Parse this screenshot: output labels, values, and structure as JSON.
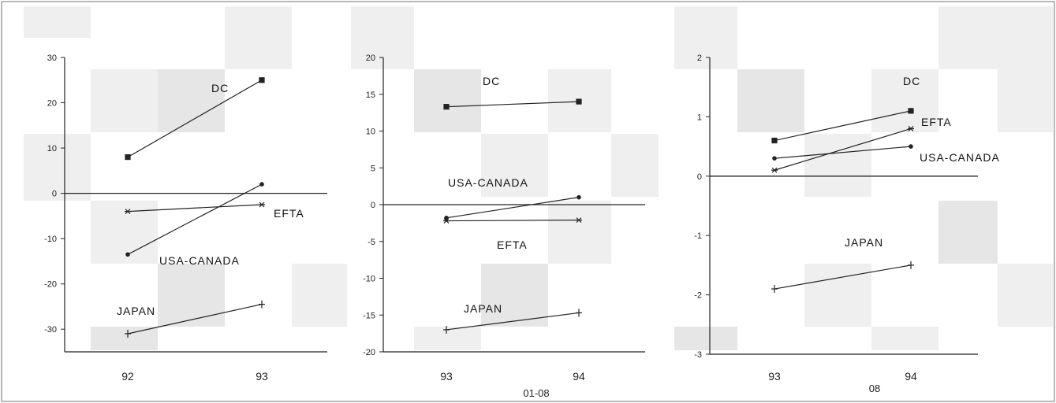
{
  "chart_data": [
    {
      "type": "line",
      "x": [
        "92",
        "93"
      ],
      "subtitle": "",
      "ylim": [
        -35,
        30
      ],
      "yticks": [
        30,
        20,
        10,
        0,
        -10,
        -20,
        -30
      ],
      "series": [
        {
          "name": "DC",
          "values": [
            8,
            25
          ],
          "marker": "square"
        },
        {
          "name": "EFTA",
          "values": [
            -4,
            -2.5
          ],
          "marker": "star"
        },
        {
          "name": "USA-CANADA",
          "values": [
            -13.5,
            2
          ],
          "marker": "dot"
        },
        {
          "name": "JAPAN",
          "values": [
            -31,
            -24.5
          ],
          "marker": "plus"
        }
      ]
    },
    {
      "type": "line",
      "x": [
        "93",
        "94"
      ],
      "subtitle": "01-08",
      "ylim": [
        -20,
        20
      ],
      "yticks": [
        20,
        15,
        10,
        5,
        0,
        -5,
        -10,
        -15,
        -20
      ],
      "series": [
        {
          "name": "DC",
          "values": [
            13.3,
            14
          ],
          "marker": "square"
        },
        {
          "name": "USA-CANADA",
          "values": [
            -1.8,
            1
          ],
          "marker": "dot"
        },
        {
          "name": "EFTA",
          "values": [
            -2.2,
            -2.1
          ],
          "marker": "star"
        },
        {
          "name": "JAPAN",
          "values": [
            -17,
            -14.7
          ],
          "marker": "plus"
        }
      ]
    },
    {
      "type": "line",
      "x": [
        "93",
        "94"
      ],
      "subtitle": "08",
      "ylim": [
        -3,
        2
      ],
      "yticks": [
        2,
        1,
        0,
        -1,
        -2,
        -3
      ],
      "series": [
        {
          "name": "DC",
          "values": [
            0.6,
            1.1
          ],
          "marker": "square"
        },
        {
          "name": "EFTA",
          "values": [
            0.1,
            0.8
          ],
          "marker": "star"
        },
        {
          "name": "USA-CANADA",
          "values": [
            0.3,
            0.5
          ],
          "marker": "dot"
        },
        {
          "name": "JAPAN",
          "values": [
            -1.9,
            -1.5
          ],
          "marker": "plus"
        }
      ]
    }
  ]
}
